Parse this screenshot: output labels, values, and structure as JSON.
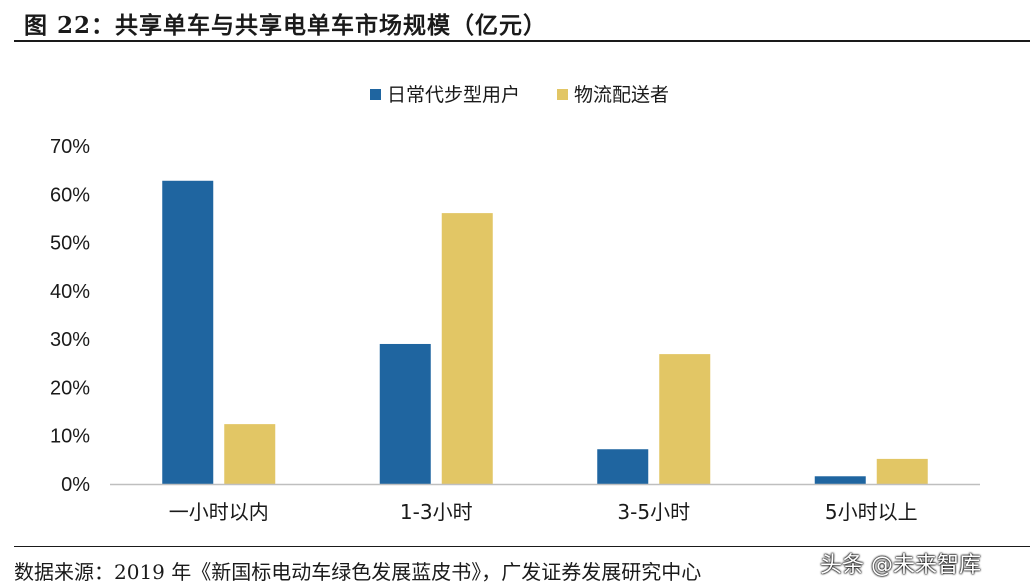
{
  "header": {
    "figure_title": "图 22：共享单车与共享电单车市场规模（亿元）"
  },
  "footer": {
    "source": "数据来源：2019 年《新国标电动车绿色发展蓝皮书》，广发证券发展研究中心",
    "watermark": "头条 @未来智库"
  },
  "colors": {
    "series_1": "#1f65a0",
    "series_2": "#e2c665",
    "axis": "#bfbfbf"
  },
  "chart_data": {
    "type": "bar",
    "title": "",
    "xlabel": "",
    "ylabel": "",
    "categories": [
      "一小时以内",
      "1-3小时",
      "3-5小时",
      "5小时以上"
    ],
    "series": [
      {
        "name": "日常代步型用户",
        "values": [
          62.8,
          29.0,
          7.2,
          1.6
        ]
      },
      {
        "name": "物流配送者",
        "values": [
          12.4,
          56.1,
          26.9,
          5.2
        ]
      }
    ],
    "ylim": [
      0,
      70
    ],
    "yticks": [
      "0%",
      "10%",
      "20%",
      "30%",
      "40%",
      "50%",
      "60%",
      "70%"
    ],
    "grid": false,
    "legend_position": "top-center"
  }
}
